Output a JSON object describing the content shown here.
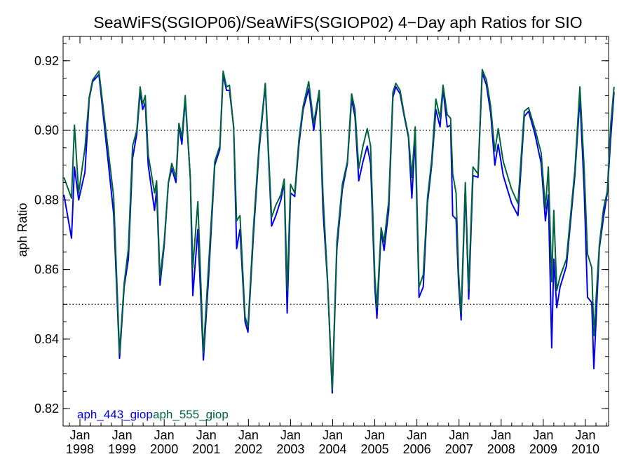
{
  "chart_data": {
    "type": "line",
    "title": "SeaWiFS(SGIOP06)/SeaWiFS(SGIOP02) 4−Day aph Ratios for SIO",
    "xlabel": "",
    "ylabel": "aph Ratio",
    "xlim": [
      1997.6,
      2010.55
    ],
    "ylim": [
      0.815,
      0.927
    ],
    "yticks": [
      0.82,
      0.84,
      0.86,
      0.88,
      0.9,
      0.92
    ],
    "ytick_labels": [
      "0.82",
      "0.84",
      "0.86",
      "0.88",
      "0.90",
      "0.92"
    ],
    "xticks": [
      {
        "x": 1998,
        "month": "Jan",
        "year": "1998"
      },
      {
        "x": 1999,
        "month": "Jan",
        "year": "1999"
      },
      {
        "x": 2000,
        "month": "Jan",
        "year": "2000"
      },
      {
        "x": 2001,
        "month": "Jan",
        "year": "2001"
      },
      {
        "x": 2002,
        "month": "Jan",
        "year": "2002"
      },
      {
        "x": 2003,
        "month": "Jan",
        "year": "2003"
      },
      {
        "x": 2004,
        "month": "Jan",
        "year": "2004"
      },
      {
        "x": 2005,
        "month": "Jan",
        "year": "2005"
      },
      {
        "x": 2006,
        "month": "Jan",
        "year": "2006"
      },
      {
        "x": 2007,
        "month": "Jan",
        "year": "2007"
      },
      {
        "x": 2008,
        "month": "Jan",
        "year": "2008"
      },
      {
        "x": 2009,
        "month": "Jan",
        "year": "2009"
      },
      {
        "x": 2010,
        "month": "Jan",
        "year": "2010"
      }
    ],
    "reference_lines": [
      0.85,
      0.9
    ],
    "grid": false,
    "legend_position": "bottom-left",
    "series": [
      {
        "name": "aph_443_giop",
        "color": "#0000ee",
        "points": [
          [
            1997.62,
            0.8815
          ],
          [
            1997.8,
            0.869
          ],
          [
            1997.87,
            0.8895
          ],
          [
            1997.97,
            0.88
          ],
          [
            1998.12,
            0.888
          ],
          [
            1998.22,
            0.909
          ],
          [
            1998.3,
            0.914
          ],
          [
            1998.45,
            0.916
          ],
          [
            1998.6,
            0.899
          ],
          [
            1998.8,
            0.876
          ],
          [
            1998.94,
            0.8345
          ],
          [
            1999.05,
            0.855
          ],
          [
            1999.15,
            0.863
          ],
          [
            1999.25,
            0.892
          ],
          [
            1999.35,
            0.899
          ],
          [
            1999.43,
            0.911
          ],
          [
            1999.49,
            0.906
          ],
          [
            1999.55,
            0.908
          ],
          [
            1999.62,
            0.89
          ],
          [
            1999.77,
            0.877
          ],
          [
            1999.82,
            0.883
          ],
          [
            1999.9,
            0.8555
          ],
          [
            2000.0,
            0.867
          ],
          [
            2000.1,
            0.885
          ],
          [
            2000.18,
            0.889
          ],
          [
            2000.28,
            0.885
          ],
          [
            2000.35,
            0.9015
          ],
          [
            2000.42,
            0.896
          ],
          [
            2000.5,
            0.909
          ],
          [
            2000.62,
            0.8865
          ],
          [
            2000.68,
            0.8525
          ],
          [
            2000.8,
            0.8715
          ],
          [
            2000.93,
            0.834
          ],
          [
            2001.05,
            0.857
          ],
          [
            2001.2,
            0.89
          ],
          [
            2001.32,
            0.8945
          ],
          [
            2001.4,
            0.916
          ],
          [
            2001.48,
            0.9115
          ],
          [
            2001.55,
            0.9115
          ],
          [
            2001.65,
            0.901
          ],
          [
            2001.72,
            0.866
          ],
          [
            2001.8,
            0.8715
          ],
          [
            2001.92,
            0.845
          ],
          [
            2001.99,
            0.842
          ],
          [
            2002.12,
            0.87
          ],
          [
            2002.25,
            0.894
          ],
          [
            2002.4,
            0.913
          ],
          [
            2002.55,
            0.8725
          ],
          [
            2002.65,
            0.8755
          ],
          [
            2002.77,
            0.88
          ],
          [
            2002.85,
            0.885
          ],
          [
            2002.92,
            0.8475
          ],
          [
            2003.0,
            0.882
          ],
          [
            2003.1,
            0.881
          ],
          [
            2003.2,
            0.896
          ],
          [
            2003.3,
            0.906
          ],
          [
            2003.43,
            0.912
          ],
          [
            2003.55,
            0.9
          ],
          [
            2003.68,
            0.911
          ],
          [
            2003.77,
            0.877
          ],
          [
            2003.88,
            0.856
          ],
          [
            2003.99,
            0.8245
          ],
          [
            2004.1,
            0.866
          ],
          [
            2004.23,
            0.883
          ],
          [
            2004.35,
            0.8905
          ],
          [
            2004.45,
            0.909
          ],
          [
            2004.53,
            0.904
          ],
          [
            2004.62,
            0.8855
          ],
          [
            2004.72,
            0.891
          ],
          [
            2004.82,
            0.8955
          ],
          [
            2004.9,
            0.8905
          ],
          [
            2005.0,
            0.855
          ],
          [
            2005.05,
            0.846
          ],
          [
            2005.15,
            0.871
          ],
          [
            2005.22,
            0.8655
          ],
          [
            2005.33,
            0.877
          ],
          [
            2005.43,
            0.9095
          ],
          [
            2005.5,
            0.9125
          ],
          [
            2005.6,
            0.9105
          ],
          [
            2005.7,
            0.904
          ],
          [
            2005.8,
            0.898
          ],
          [
            2005.88,
            0.8805
          ],
          [
            2005.96,
            0.898
          ],
          [
            2006.05,
            0.852
          ],
          [
            2006.15,
            0.855
          ],
          [
            2006.25,
            0.879
          ],
          [
            2006.35,
            0.89
          ],
          [
            2006.45,
            0.906
          ],
          [
            2006.55,
            0.901
          ],
          [
            2006.62,
            0.912
          ],
          [
            2006.72,
            0.901
          ],
          [
            2006.8,
            0.9015
          ],
          [
            2006.85,
            0.8755
          ],
          [
            2006.93,
            0.8745
          ],
          [
            2006.99,
            0.856
          ],
          [
            2007.05,
            0.8455
          ],
          [
            2007.15,
            0.8835
          ],
          [
            2007.23,
            0.8515
          ],
          [
            2007.33,
            0.887
          ],
          [
            2007.45,
            0.8865
          ],
          [
            2007.55,
            0.9165
          ],
          [
            2007.65,
            0.913
          ],
          [
            2007.75,
            0.905
          ],
          [
            2007.85,
            0.89
          ],
          [
            2007.93,
            0.896
          ],
          [
            2008.05,
            0.887
          ],
          [
            2008.25,
            0.879
          ],
          [
            2008.4,
            0.8755
          ],
          [
            2008.55,
            0.904
          ],
          [
            2008.65,
            0.9055
          ],
          [
            2008.8,
            0.899
          ],
          [
            2008.95,
            0.8905
          ],
          [
            2009.05,
            0.874
          ],
          [
            2009.12,
            0.8815
          ],
          [
            2009.2,
            0.8375
          ],
          [
            2009.25,
            0.863
          ],
          [
            2009.32,
            0.849
          ],
          [
            2009.4,
            0.855
          ],
          [
            2009.55,
            0.861
          ],
          [
            2009.75,
            0.887
          ],
          [
            2009.87,
            0.9095
          ],
          [
            2009.97,
            0.883
          ],
          [
            2010.05,
            0.852
          ],
          [
            2010.15,
            0.8505
          ],
          [
            2010.2,
            0.8315
          ],
          [
            2010.33,
            0.866
          ],
          [
            2010.43,
            0.875
          ],
          [
            2010.52,
            0.882
          ],
          [
            2010.6,
            0.8975
          ],
          [
            2010.68,
            0.911
          ]
        ]
      },
      {
        "name": "aph_555_giop",
        "color": "#00643c",
        "points": [
          [
            1997.62,
            0.8865
          ],
          [
            1997.8,
            0.8805
          ],
          [
            1997.87,
            0.9015
          ],
          [
            1997.97,
            0.882
          ],
          [
            1998.12,
            0.895
          ],
          [
            1998.22,
            0.9095
          ],
          [
            1998.3,
            0.9145
          ],
          [
            1998.45,
            0.917
          ],
          [
            1998.6,
            0.9015
          ],
          [
            1998.8,
            0.881
          ],
          [
            1998.94,
            0.836
          ],
          [
            1999.05,
            0.856
          ],
          [
            1999.15,
            0.866
          ],
          [
            1999.25,
            0.8955
          ],
          [
            1999.35,
            0.9
          ],
          [
            1999.43,
            0.9125
          ],
          [
            1999.49,
            0.9075
          ],
          [
            1999.55,
            0.91
          ],
          [
            1999.62,
            0.893
          ],
          [
            1999.77,
            0.882
          ],
          [
            1999.82,
            0.8855
          ],
          [
            1999.9,
            0.8575
          ],
          [
            2000.0,
            0.868
          ],
          [
            2000.1,
            0.885
          ],
          [
            2000.18,
            0.8905
          ],
          [
            2000.28,
            0.8865
          ],
          [
            2000.35,
            0.902
          ],
          [
            2000.42,
            0.898
          ],
          [
            2000.5,
            0.91
          ],
          [
            2000.62,
            0.8865
          ],
          [
            2000.68,
            0.8605
          ],
          [
            2000.8,
            0.8795
          ],
          [
            2000.93,
            0.836
          ],
          [
            2001.05,
            0.8605
          ],
          [
            2001.2,
            0.891
          ],
          [
            2001.32,
            0.8955
          ],
          [
            2001.4,
            0.917
          ],
          [
            2001.48,
            0.9125
          ],
          [
            2001.55,
            0.913
          ],
          [
            2001.65,
            0.9005
          ],
          [
            2001.72,
            0.874
          ],
          [
            2001.8,
            0.8755
          ],
          [
            2001.92,
            0.8465
          ],
          [
            2001.99,
            0.8435
          ],
          [
            2002.12,
            0.872
          ],
          [
            2002.25,
            0.8955
          ],
          [
            2002.4,
            0.9135
          ],
          [
            2002.55,
            0.875
          ],
          [
            2002.65,
            0.8785
          ],
          [
            2002.77,
            0.8815
          ],
          [
            2002.85,
            0.886
          ],
          [
            2002.92,
            0.854
          ],
          [
            2003.0,
            0.8845
          ],
          [
            2003.1,
            0.882
          ],
          [
            2003.2,
            0.8975
          ],
          [
            2003.3,
            0.907
          ],
          [
            2003.43,
            0.914
          ],
          [
            2003.55,
            0.902
          ],
          [
            2003.68,
            0.9115
          ],
          [
            2003.77,
            0.8815
          ],
          [
            2003.88,
            0.8565
          ],
          [
            2003.99,
            0.8255
          ],
          [
            2004.1,
            0.868
          ],
          [
            2004.23,
            0.8845
          ],
          [
            2004.35,
            0.891
          ],
          [
            2004.45,
            0.9105
          ],
          [
            2004.53,
            0.906
          ],
          [
            2004.62,
            0.889
          ],
          [
            2004.72,
            0.8955
          ],
          [
            2004.82,
            0.9005
          ],
          [
            2004.9,
            0.8955
          ],
          [
            2005.0,
            0.858
          ],
          [
            2005.05,
            0.849
          ],
          [
            2005.15,
            0.872
          ],
          [
            2005.22,
            0.868
          ],
          [
            2005.33,
            0.8795
          ],
          [
            2005.43,
            0.911
          ],
          [
            2005.5,
            0.9135
          ],
          [
            2005.6,
            0.9115
          ],
          [
            2005.7,
            0.9045
          ],
          [
            2005.8,
            0.8985
          ],
          [
            2005.88,
            0.8865
          ],
          [
            2005.96,
            0.901
          ],
          [
            2006.05,
            0.855
          ],
          [
            2006.15,
            0.8585
          ],
          [
            2006.25,
            0.8805
          ],
          [
            2006.35,
            0.8915
          ],
          [
            2006.45,
            0.909
          ],
          [
            2006.55,
            0.9035
          ],
          [
            2006.62,
            0.913
          ],
          [
            2006.72,
            0.9045
          ],
          [
            2006.8,
            0.9035
          ],
          [
            2006.85,
            0.8875
          ],
          [
            2006.93,
            0.882
          ],
          [
            2006.99,
            0.859
          ],
          [
            2007.05,
            0.8475
          ],
          [
            2007.15,
            0.885
          ],
          [
            2007.23,
            0.8545
          ],
          [
            2007.33,
            0.8895
          ],
          [
            2007.45,
            0.8875
          ],
          [
            2007.55,
            0.9175
          ],
          [
            2007.65,
            0.9145
          ],
          [
            2007.75,
            0.907
          ],
          [
            2007.85,
            0.894
          ],
          [
            2007.93,
            0.9005
          ],
          [
            2008.05,
            0.891
          ],
          [
            2008.25,
            0.883
          ],
          [
            2008.4,
            0.879
          ],
          [
            2008.55,
            0.9055
          ],
          [
            2008.65,
            0.9065
          ],
          [
            2008.8,
            0.9005
          ],
          [
            2008.95,
            0.8935
          ],
          [
            2009.05,
            0.8775
          ],
          [
            2009.12,
            0.8895
          ],
          [
            2009.2,
            0.8565
          ],
          [
            2009.25,
            0.877
          ],
          [
            2009.32,
            0.854
          ],
          [
            2009.4,
            0.858
          ],
          [
            2009.55,
            0.863
          ],
          [
            2009.75,
            0.8885
          ],
          [
            2009.87,
            0.9125
          ],
          [
            2009.97,
            0.889
          ],
          [
            2010.05,
            0.8645
          ],
          [
            2010.15,
            0.8605
          ],
          [
            2010.2,
            0.841
          ],
          [
            2010.33,
            0.867
          ],
          [
            2010.43,
            0.8775
          ],
          [
            2010.52,
            0.8825
          ],
          [
            2010.6,
            0.9015
          ],
          [
            2010.68,
            0.9125
          ]
        ]
      }
    ]
  }
}
